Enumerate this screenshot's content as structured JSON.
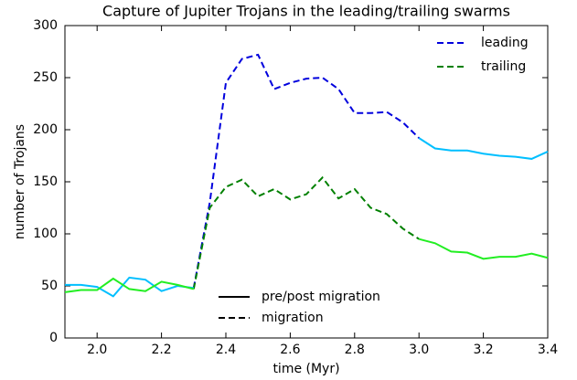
{
  "chart_data": {
    "type": "line",
    "title": "Capture of Jupiter Trojans in the leading/trailing swarms",
    "x_label": "time (Myr)",
    "y_label": "number of Trojans",
    "xlim": [
      1.9,
      3.4
    ],
    "xticks": [
      {
        "value": 2.0,
        "label": "2.0"
      },
      2.2,
      2.4,
      2.6,
      2.8,
      {
        "value": 3.0,
        "label": "3.0"
      },
      3.2,
      3.4
    ],
    "ylim": [
      0,
      300
    ],
    "yticks": [
      0,
      50,
      100,
      150,
      200,
      250,
      300
    ],
    "x": [
      1.9,
      1.95,
      2.0,
      2.05,
      2.1,
      2.15,
      2.2,
      2.25,
      2.3,
      2.35,
      2.4,
      2.45,
      2.5,
      2.55,
      2.6,
      2.65,
      2.7,
      2.75,
      2.8,
      2.85,
      2.9,
      2.95,
      3.0,
      3.05,
      3.1,
      3.15,
      3.2,
      3.25,
      3.3,
      3.35,
      3.4
    ],
    "series": [
      {
        "name": "leading",
        "color": "#0000dd",
        "dashed": true,
        "values": [
          null,
          null,
          null,
          null,
          null,
          null,
          null,
          null,
          48,
          130,
          245,
          268,
          272,
          239,
          245,
          249,
          250,
          239,
          216,
          216,
          217,
          207,
          192,
          null,
          null,
          null,
          null,
          null,
          null,
          null,
          null
        ]
      },
      {
        "name": "trailing",
        "color": "#008000",
        "dashed": true,
        "values": [
          null,
          null,
          null,
          null,
          null,
          null,
          null,
          null,
          47,
          125,
          145,
          152,
          136,
          143,
          133,
          138,
          154,
          134,
          143,
          125,
          119,
          105,
          95,
          null,
          null,
          null,
          null,
          null,
          null,
          null,
          null
        ]
      },
      {
        "color": "#00bfff",
        "dashed": false,
        "values": [
          51,
          51,
          49,
          40,
          58,
          56,
          45,
          50,
          48,
          null,
          null,
          null,
          null,
          null,
          null,
          null,
          null,
          null,
          null,
          null,
          null,
          null,
          192,
          182,
          180,
          180,
          177,
          175,
          174,
          172,
          179
        ]
      },
      {
        "color": "#22ee22",
        "dashed": false,
        "values": [
          44,
          46,
          46,
          57,
          47,
          45,
          54,
          51,
          47,
          null,
          null,
          null,
          null,
          null,
          null,
          null,
          null,
          null,
          null,
          null,
          null,
          null,
          95,
          91,
          83,
          82,
          76,
          78,
          78,
          81,
          77
        ]
      }
    ],
    "style_legend": [
      {
        "label": "pre/post migration",
        "dashed": false
      },
      {
        "label": "migration",
        "dashed": true
      }
    ],
    "legend": "upper right"
  }
}
